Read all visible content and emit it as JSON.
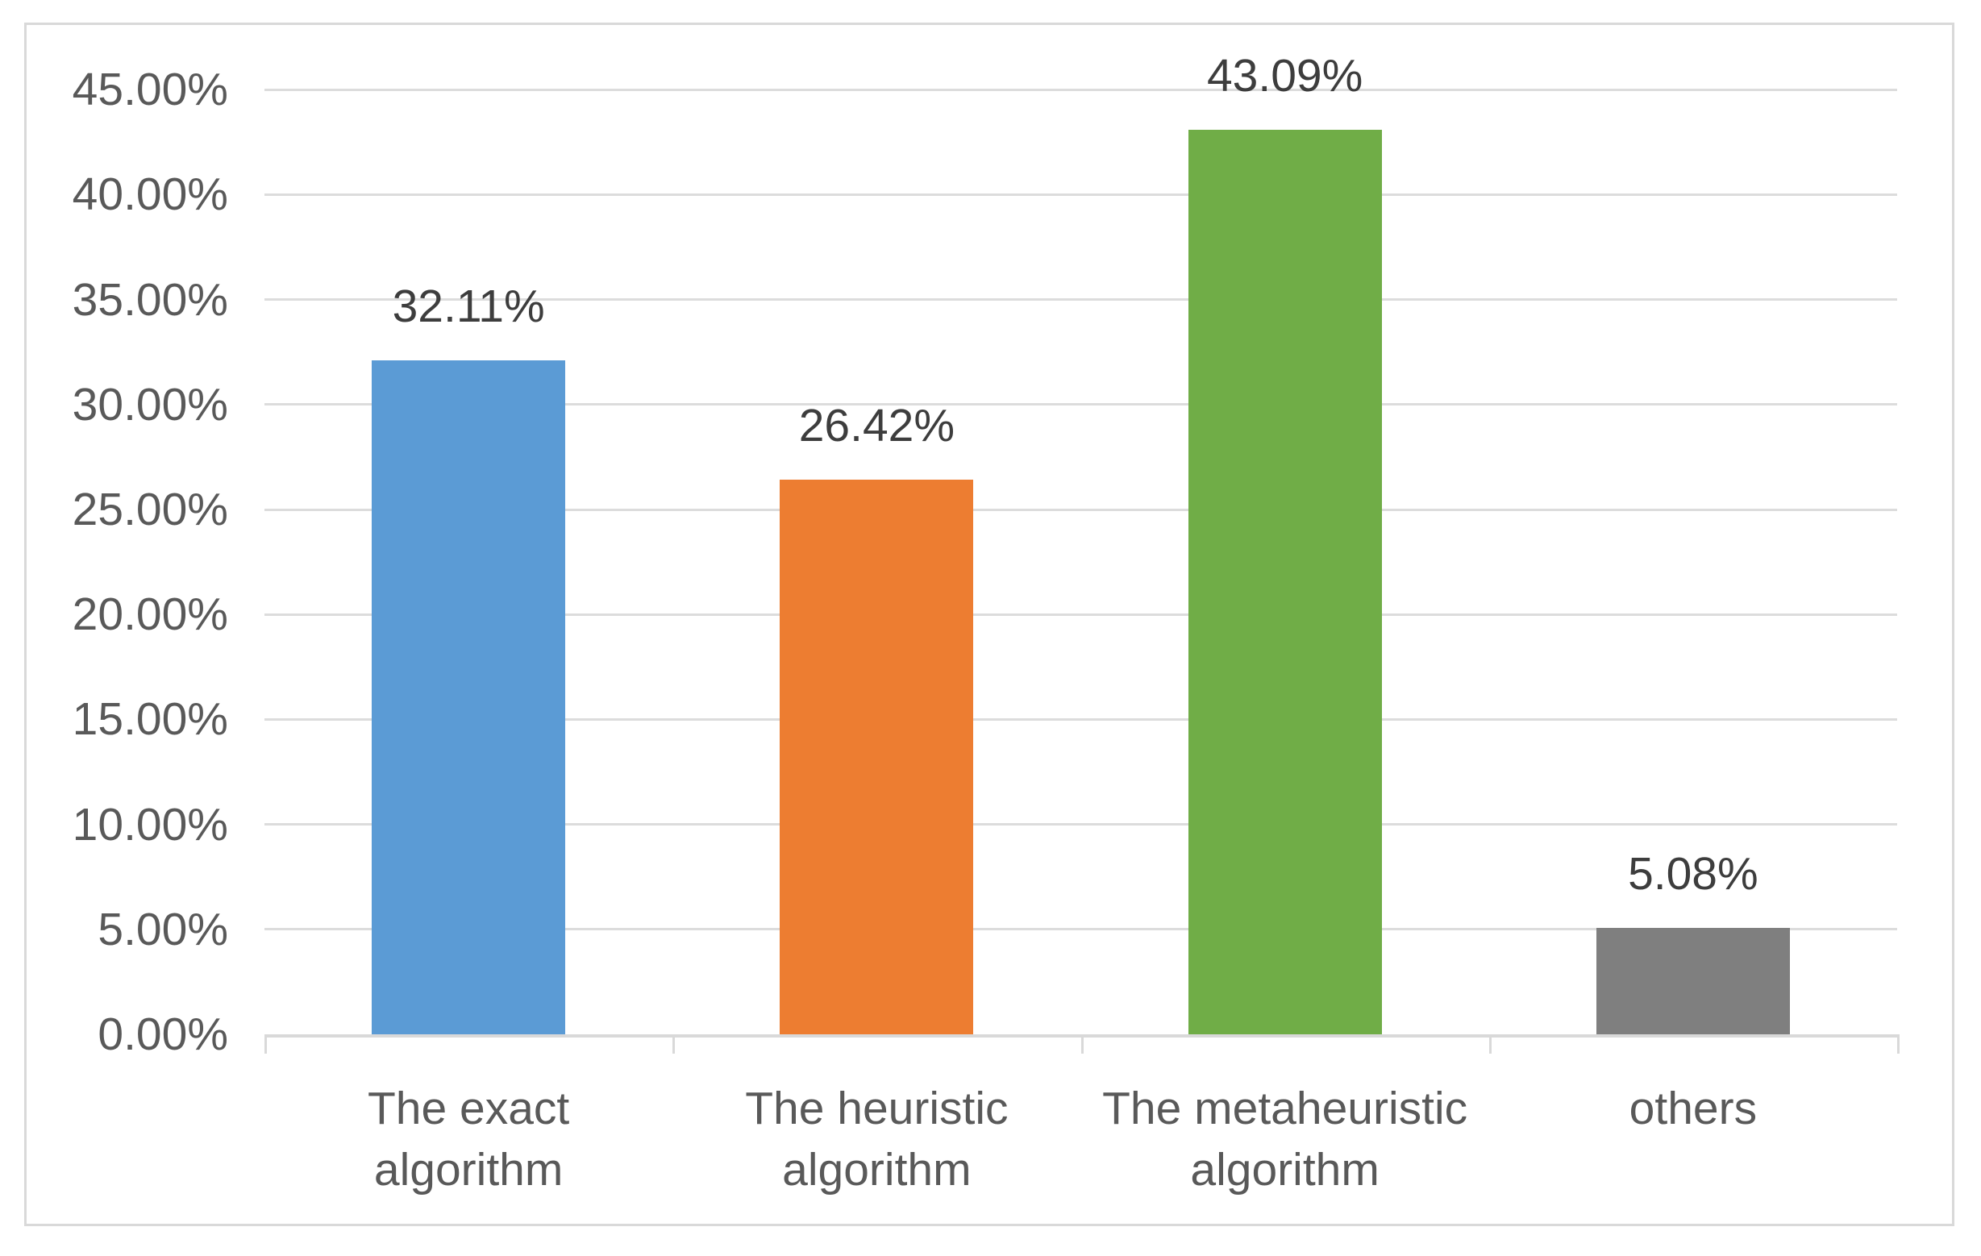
{
  "chart_data": {
    "type": "bar",
    "title": "",
    "xlabel": "",
    "ylabel": "",
    "categories": [
      "The exact algorithm",
      "The heuristic algorithm",
      "The metaheuristic algorithm",
      "others"
    ],
    "x_display_labels": [
      "The exact\nalgorithm",
      "The heuristic\nalgorithm",
      "The metaheuristic\nalgorithm",
      "others"
    ],
    "values": [
      32.11,
      26.42,
      43.09,
      5.08
    ],
    "value_labels": [
      "32.11%",
      "26.42%",
      "43.09%",
      "5.08%"
    ],
    "bar_colors": [
      "#5b9bd5",
      "#ed7d31",
      "#70ad47",
      "#7f7f7f"
    ],
    "y_axis": {
      "tick_values": [
        45,
        40,
        35,
        30,
        25,
        20,
        15,
        10,
        5,
        0
      ],
      "tick_labels": [
        "45.00%",
        "40.00%",
        "35.00%",
        "30.00%",
        "25.00%",
        "20.00%",
        "15.00%",
        "10.00%",
        "5.00%",
        "0.00%"
      ]
    },
    "ylim": [
      0,
      45
    ],
    "grid": "horizontal",
    "legend": "none",
    "colors": {
      "gridline": "#dcdcdc",
      "axis_line": "#d9d9d9",
      "frame_border": "#d9d9d9",
      "axis_text": "#595959",
      "data_label_text": "#3d3d3d",
      "background": "#ffffff"
    }
  }
}
